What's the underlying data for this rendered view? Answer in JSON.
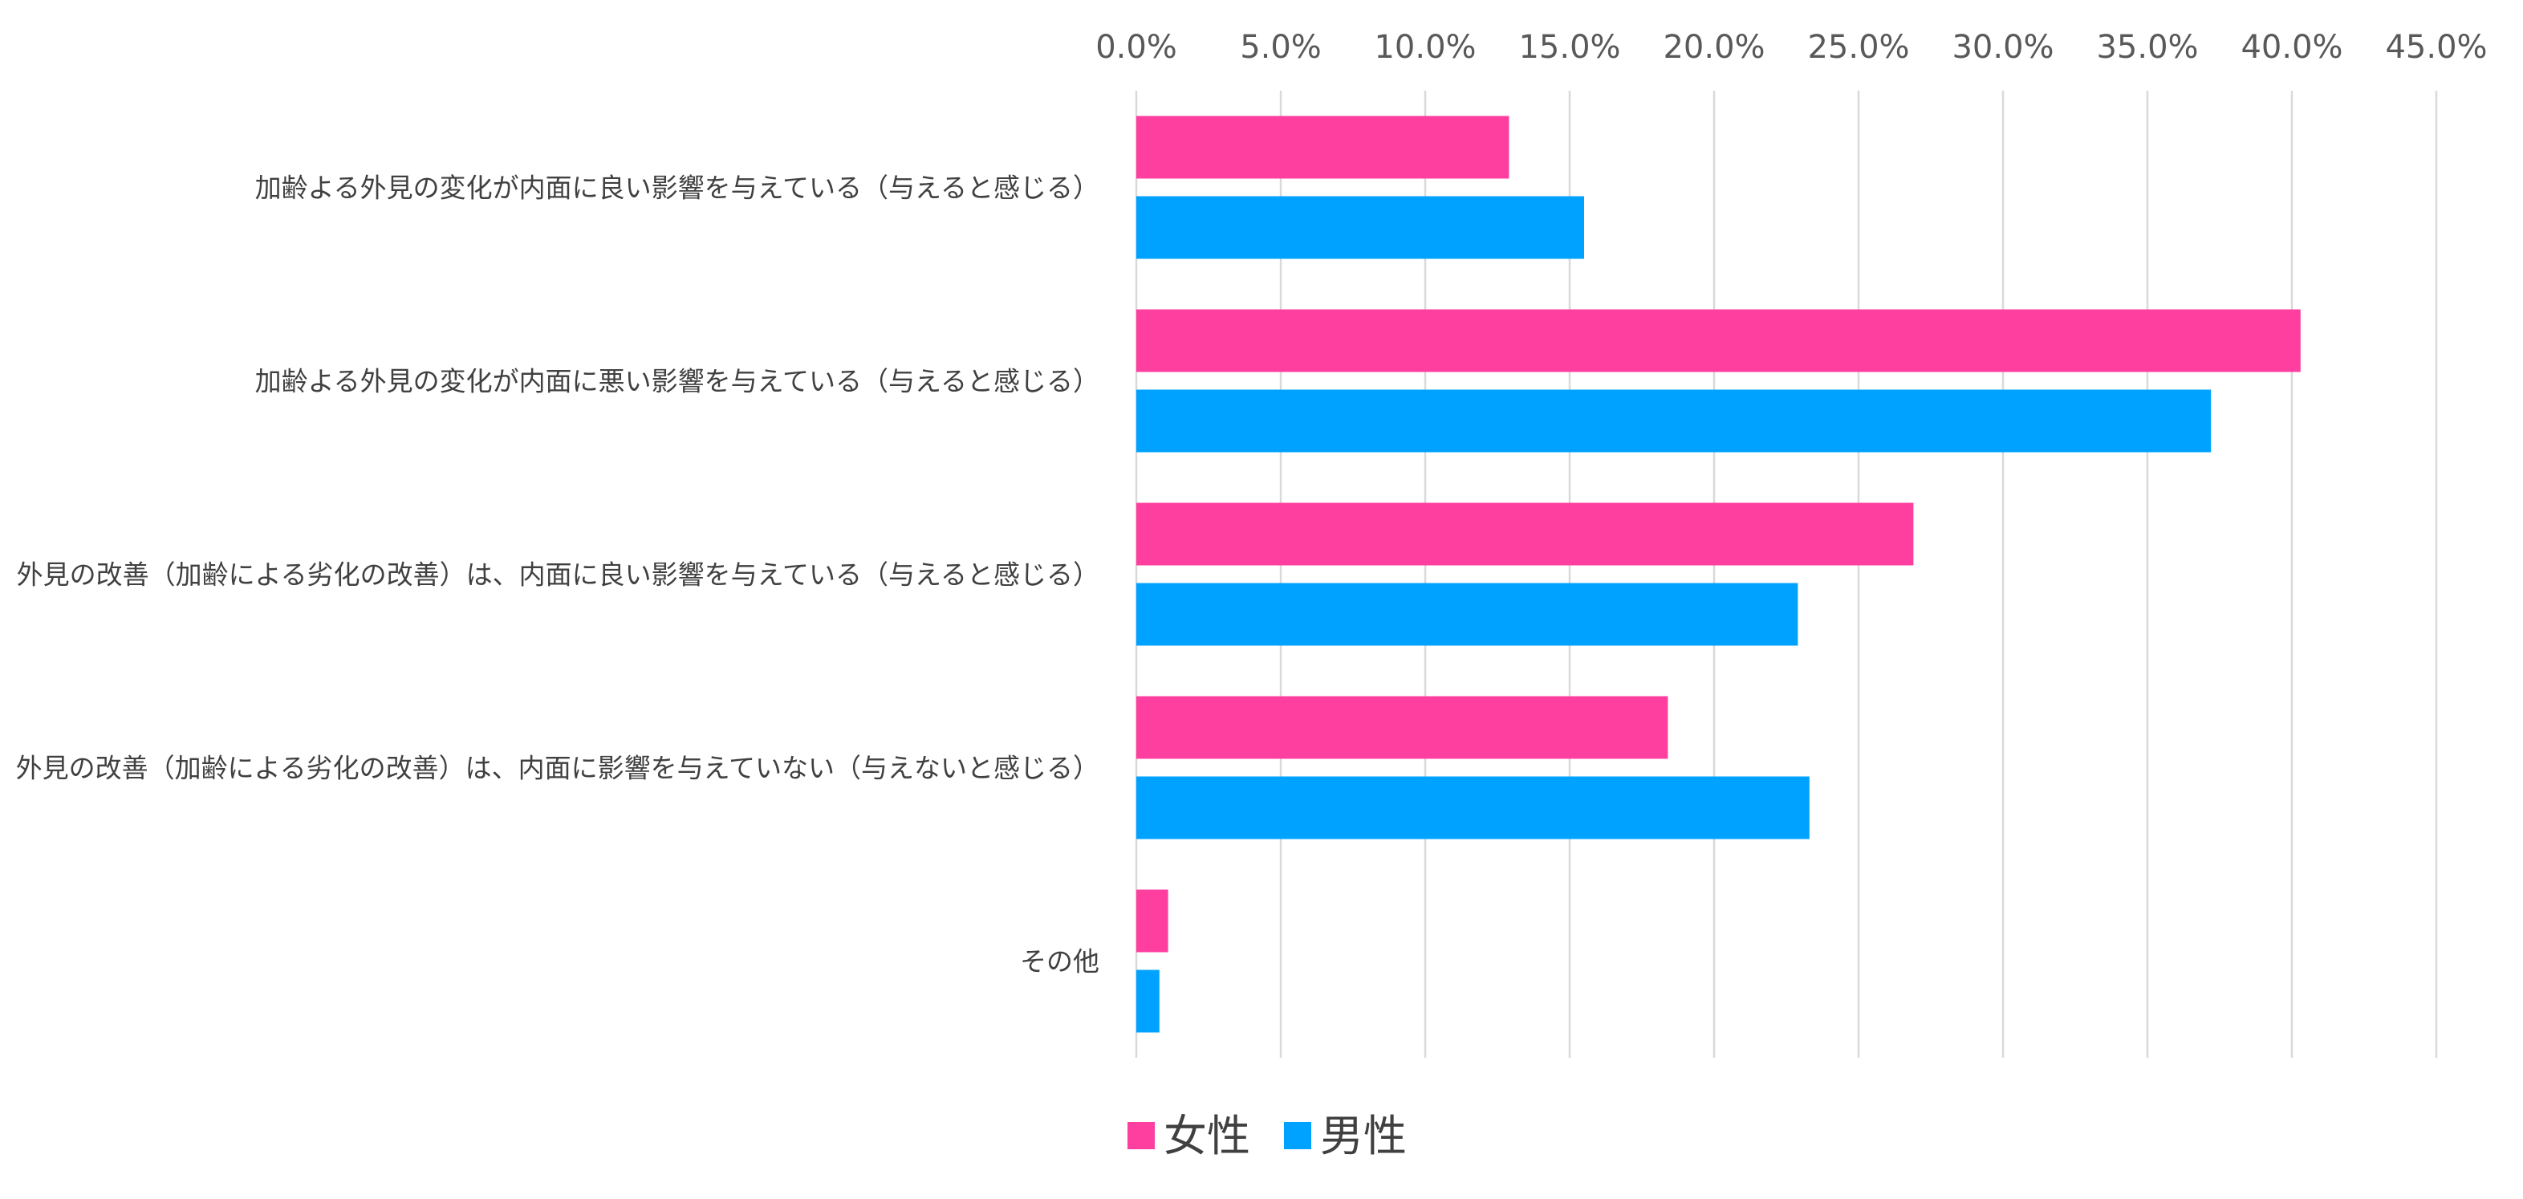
{
  "chart_data": {
    "type": "bar",
    "orientation": "horizontal",
    "title": "",
    "xlabel": "",
    "ylabel": "",
    "xlim": [
      0,
      45
    ],
    "tick_values": [
      0,
      5,
      10,
      15,
      20,
      25,
      30,
      35,
      40,
      45
    ],
    "tick_labels": [
      "0.0%",
      "5.0%",
      "10.0%",
      "15.0%",
      "20.0%",
      "25.0%",
      "30.0%",
      "35.0%",
      "40.0%",
      "45.0%"
    ],
    "x_axis_position": "top",
    "grid": true,
    "legend_position": "bottom",
    "categories": [
      "加齢よる外見の変化が内面に良い影響を与えている（与えると感じる）",
      "加齢よる外見の変化が内面に悪い影響を与えている（与えると感じる）",
      "外見の改善（加齢による劣化の改善）は、内面に良い影響を与えている（与えると感じる）",
      "外見の改善（加齢による劣化の改善）は、内面に影響を与えていない（与えないと感じる）",
      "その他"
    ],
    "series": [
      {
        "name": "女性",
        "color": "#ff3f9f",
        "values": [
          12.9,
          40.3,
          26.9,
          18.4,
          1.1
        ]
      },
      {
        "name": "男性",
        "color": "#00a2ff",
        "values": [
          15.5,
          37.2,
          22.9,
          23.3,
          0.8
        ]
      }
    ]
  }
}
